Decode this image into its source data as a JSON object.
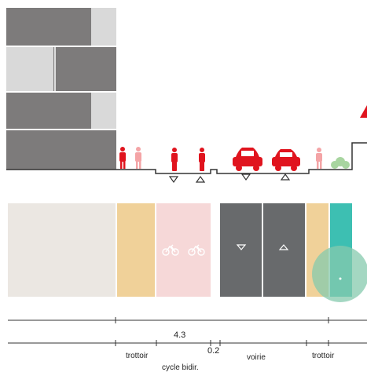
{
  "section": {
    "dimension_main": "4.3",
    "dimension_small": "0.2",
    "labels": {
      "trottoir_left": "trottoir",
      "cycle": "cycle bidir.",
      "voirie": "voirie",
      "trottoir_right": "trottoir"
    }
  },
  "colors": {
    "building_dark": "#7d7b7b",
    "building_light": "#d9d9d9",
    "sidewalk": "#f0d199",
    "cycle": "#f6d8d8",
    "road": "#686a6c",
    "teal": "#3dbfb2",
    "teal_circle": "#86c9ad",
    "red": "#e0141e",
    "pink": "#f4a4a6",
    "beige": "#ebe7e2"
  },
  "icons": [
    "pedestrian-icon",
    "cyclist-icon",
    "car-icon",
    "arrow-up-icon",
    "arrow-down-icon",
    "bicycle-icon",
    "tree-icon"
  ]
}
